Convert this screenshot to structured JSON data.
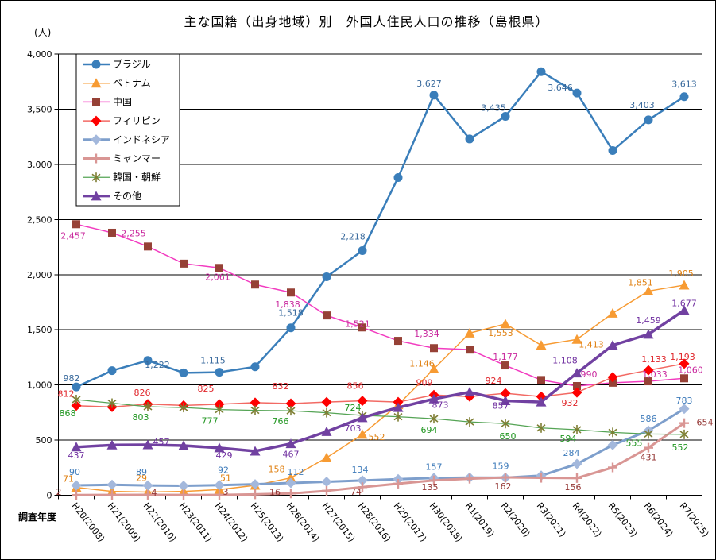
{
  "chart_data": {
    "type": "line",
    "title": "主な国籍（出身地域）別　外国人住民人口の推移（島根県）",
    "ylabel": "(人)",
    "xlabel": "調査年度",
    "ylim": [
      0,
      4000
    ],
    "ytick_step": 500,
    "ytick_labels": [
      "0",
      "500",
      "1,000",
      "1,500",
      "2,000",
      "2,500",
      "3,000",
      "3,500",
      "4,000"
    ],
    "grid": "horizontal",
    "legend_position": "top-left-inside",
    "unlabeled_years_estimated": true,
    "categories": [
      "H20(2008)",
      "H21(2009)",
      "H22(2010)",
      "H23(2011)",
      "H24(2012)",
      "H25(2013)",
      "H26(2014)",
      "H27(2015)",
      "H28(2016)",
      "H29(2017)",
      "H30(2018)",
      "R1(2019)",
      "R2(2020)",
      "R3(2021)",
      "R4(2022)",
      "R5(2023)",
      "R6(2024)",
      "R7(2025)"
    ],
    "series": [
      {
        "id": "brazil",
        "name": "ブラジル",
        "line_color": "#3A7EBA",
        "marker": "circle",
        "marker_color": "#3A7EBA",
        "label_color": "#38699C",
        "line_width": 2.5,
        "values": [
          982,
          1130,
          1222,
          1110,
          1115,
          1165,
          1518,
          1980,
          2218,
          2880,
          3627,
          3230,
          3435,
          3840,
          3646,
          3125,
          3403,
          3613
        ],
        "labels": [
          [
            0,
            "a",
            -6,
            0
          ],
          [
            2,
            "b",
            12,
            -6
          ],
          [
            4,
            "a",
            -8,
            -4
          ],
          [
            6,
            "a",
            0,
            -8
          ],
          [
            8,
            "a",
            -12,
            -7
          ],
          [
            10,
            "a",
            -6,
            -4
          ],
          [
            12,
            "a",
            -15,
            0
          ],
          [
            14,
            "a",
            -21,
            4
          ],
          [
            16,
            "a",
            -8,
            -8
          ],
          [
            17,
            "a",
            0,
            -5
          ]
        ]
      },
      {
        "id": "vietnam",
        "name": "ベトナム",
        "line_color": "#F79B33",
        "marker": "triangle",
        "marker_color": "#F79B33",
        "label_color": "#E08214",
        "line_width": 1.5,
        "values": [
          71,
          35,
          29,
          35,
          51,
          90,
          158,
          340,
          552,
          820,
          1146,
          1470,
          1553,
          1360,
          1413,
          1650,
          1851,
          1905
        ],
        "labels": [
          [
            0,
            "a",
            -10,
            0
          ],
          [
            2,
            "a",
            -8,
            -7
          ],
          [
            4,
            "a",
            8,
            -4
          ],
          [
            6,
            "a",
            -18,
            0
          ],
          [
            8,
            "b",
            18,
            -8
          ],
          [
            10,
            "a",
            -15,
            4
          ],
          [
            12,
            "b",
            -6,
            0
          ],
          [
            14,
            "b",
            18,
            -5
          ],
          [
            16,
            "a",
            -10,
            0
          ],
          [
            17,
            "a",
            -4,
            -4
          ]
        ]
      },
      {
        "id": "china",
        "name": "中国",
        "line_color": "#F23CC0",
        "marker": "square",
        "marker_color": "#964136",
        "label_color": "#C9299E",
        "line_width": 1.5,
        "values": [
          2457,
          2380,
          2255,
          2100,
          2061,
          1910,
          1838,
          1630,
          1521,
          1400,
          1334,
          1320,
          1177,
          1045,
          990,
          1020,
          1033,
          1060
        ],
        "labels": [
          [
            0,
            "b",
            -4,
            3
          ],
          [
            2,
            "a",
            -18,
            -6
          ],
          [
            4,
            "b",
            -2,
            0
          ],
          [
            6,
            "b",
            -4,
            4
          ],
          [
            8,
            "a",
            -6,
            6
          ],
          [
            10,
            "a",
            -9,
            -7
          ],
          [
            12,
            "a",
            0,
            0
          ],
          [
            14,
            "a",
            15,
            -4
          ],
          [
            16,
            "a",
            8,
            2
          ],
          [
            17,
            "a",
            8,
            0
          ]
        ]
      },
      {
        "id": "philippines",
        "name": "フィリピン",
        "line_color": "#F26A64",
        "marker": "diamond",
        "marker_color": "#FE0000",
        "label_color": "#E0262B",
        "line_width": 1.5,
        "values": [
          812,
          800,
          826,
          815,
          825,
          840,
          832,
          845,
          856,
          845,
          909,
          895,
          924,
          895,
          932,
          1070,
          1133,
          1193
        ],
        "labels": [
          [
            0,
            "a",
            -13,
            -4
          ],
          [
            2,
            "a",
            -7,
            -4
          ],
          [
            4,
            "a",
            -17,
            -9
          ],
          [
            6,
            "a",
            -13,
            -11
          ],
          [
            8,
            "a",
            -9,
            -8
          ],
          [
            10,
            "a",
            -12,
            -5
          ],
          [
            12,
            "a",
            -15,
            -5
          ],
          [
            14,
            "b",
            -9,
            2
          ],
          [
            16,
            "a",
            7,
            -3
          ],
          [
            17,
            "a",
            -2,
            2
          ]
        ]
      },
      {
        "id": "indonesia",
        "name": "インドネシア",
        "line_color": "#7E9FCC",
        "marker": "diamond",
        "marker_color": "#A3B8DC",
        "label_color": "#3E7BBA",
        "line_width": 3,
        "values": [
          90,
          95,
          89,
          86,
          92,
          100,
          112,
          122,
          134,
          146,
          157,
          160,
          159,
          178,
          284,
          455,
          586,
          783
        ],
        "labels": [
          [
            0,
            "a",
            -2,
            -6
          ],
          [
            2,
            "a",
            -8,
            -6
          ],
          [
            4,
            "a",
            5,
            -8
          ],
          [
            6,
            "a",
            6,
            -3
          ],
          [
            8,
            "a",
            -3,
            -3
          ],
          [
            10,
            "a",
            0,
            -3
          ],
          [
            12,
            "a",
            -6,
            -4
          ],
          [
            14,
            "a",
            -7,
            -3
          ],
          [
            16,
            "a",
            0,
            -4
          ],
          [
            17,
            "a",
            0,
            0
          ]
        ]
      },
      {
        "id": "myanmar",
        "name": "ミャンマー",
        "line_color": "#D99694",
        "marker": "plus",
        "marker_color": "#D99694",
        "label_color": "#943634",
        "line_width": 3,
        "values": [
          2,
          3,
          4,
          3,
          3,
          8,
          16,
          40,
          74,
          105,
          135,
          150,
          162,
          158,
          156,
          252,
          431,
          654
        ],
        "labels": [
          [
            0,
            "a",
            -22,
            7
          ],
          [
            2,
            "a",
            8,
            8
          ],
          [
            4,
            "a",
            8,
            7
          ],
          [
            6,
            "a",
            -20,
            9
          ],
          [
            8,
            "b",
            -8,
            -5
          ],
          [
            10,
            "b",
            -5,
            -3
          ],
          [
            12,
            "b",
            -3,
            0
          ],
          [
            14,
            "b",
            -5,
            0
          ],
          [
            16,
            "b",
            0,
            1
          ],
          [
            17,
            "a",
            26,
            10
          ]
        ]
      },
      {
        "id": "korea",
        "name": "韓国・朝鮮",
        "line_color": "#55A455",
        "marker": "asterisk",
        "marker_color": "#7E7E33",
        "label_color": "#219621",
        "line_width": 1.25,
        "values": [
          868,
          835,
          803,
          795,
          777,
          770,
          766,
          748,
          724,
          712,
          694,
          665,
          650,
          610,
          594,
          570,
          555,
          552
        ],
        "labels": [
          [
            0,
            "b",
            -11,
            6
          ],
          [
            2,
            "b",
            -9,
            2
          ],
          [
            4,
            "b",
            -12,
            3
          ],
          [
            6,
            "b",
            -13,
            2
          ],
          [
            8,
            "a",
            -12,
            1
          ],
          [
            10,
            "b",
            -6,
            3
          ],
          [
            12,
            "b",
            3,
            5
          ],
          [
            14,
            "b",
            -11,
            0
          ],
          [
            16,
            "b",
            -18,
            0
          ],
          [
            17,
            "b",
            -5,
            5
          ]
        ]
      },
      {
        "id": "other",
        "name": "その他",
        "line_color": "#7141A1",
        "marker": "triangle",
        "marker_color": "#7141A1",
        "label_color": "#7030A0",
        "line_width": 3.5,
        "values": [
          437,
          455,
          457,
          450,
          429,
          400,
          467,
          577,
          703,
          795,
          873,
          935,
          857,
          845,
          1108,
          1360,
          1459,
          1677
        ],
        "labels": [
          [
            0,
            "b",
            0,
            -1
          ],
          [
            2,
            "a",
            17,
            7
          ],
          [
            4,
            "b",
            6,
            -2
          ],
          [
            6,
            "b",
            0,
            2
          ],
          [
            8,
            "b",
            -12,
            2
          ],
          [
            10,
            "b",
            8,
            -4
          ],
          [
            12,
            "b",
            -6,
            -5
          ],
          [
            14,
            "a",
            -15,
            -5
          ],
          [
            16,
            "a",
            0,
            -7
          ],
          [
            17,
            "a",
            0,
            2
          ]
        ]
      }
    ]
  }
}
